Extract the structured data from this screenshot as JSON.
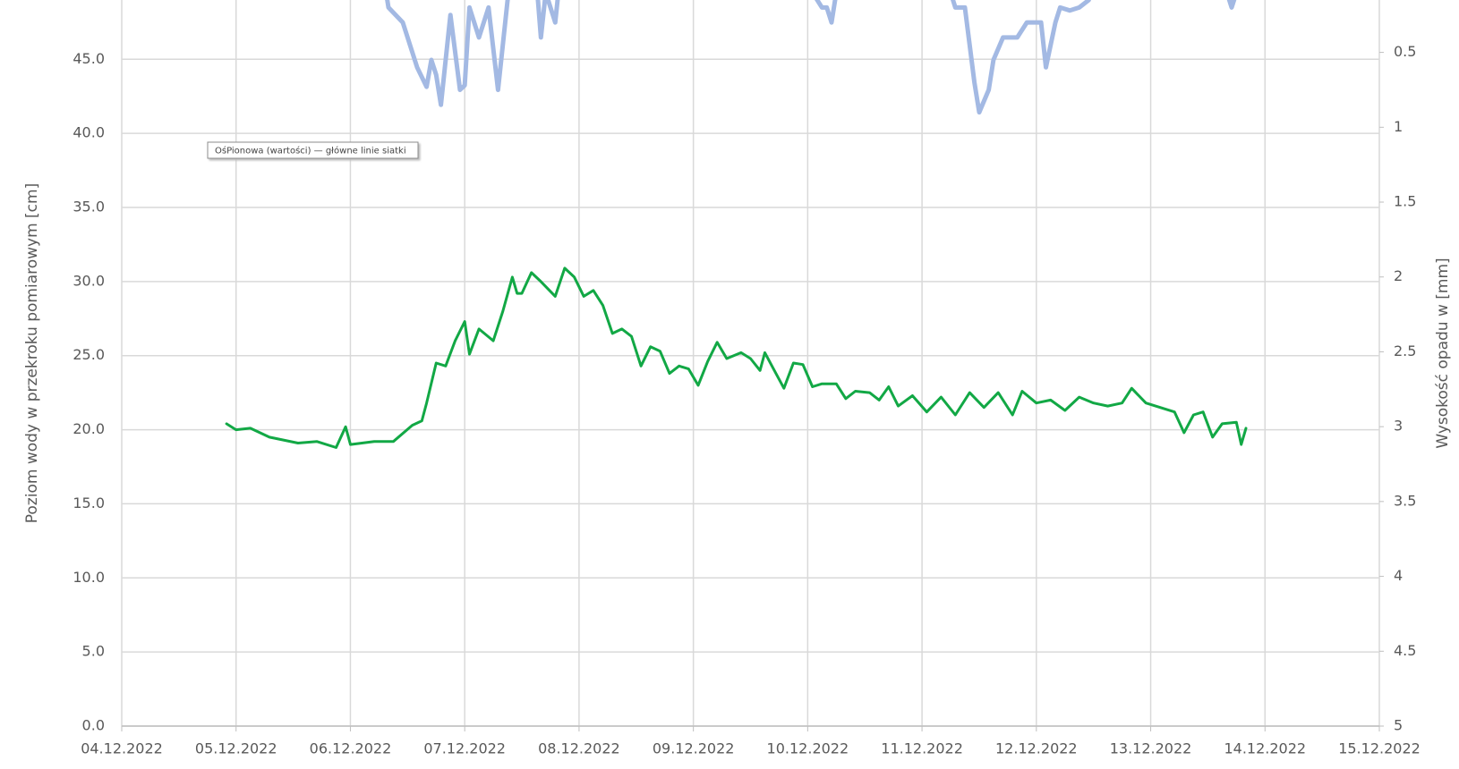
{
  "chart_data": {
    "type": "line",
    "y_label": "Poziom wody w przekroku pomiarowym [cm]",
    "y2_label": "Wysokość opadu w [mm]",
    "tooltip": "OśPionowa (wartości)  — główne linie siatki",
    "grid": true,
    "xlim": [
      "2022-12-04T00:00",
      "2022-12-15T00:00"
    ],
    "xticks": [
      {
        "value": "2022-12-04T00:00",
        "label": "04.12.2022"
      },
      {
        "value": "2022-12-05T00:00",
        "label": "05.12.2022"
      },
      {
        "value": "2022-12-06T00:00",
        "label": "06.12.2022"
      },
      {
        "value": "2022-12-07T00:00",
        "label": "07.12.2022"
      },
      {
        "value": "2022-12-08T00:00",
        "label": "08.12.2022"
      },
      {
        "value": "2022-12-09T00:00",
        "label": "09.12.2022"
      },
      {
        "value": "2022-12-10T00:00",
        "label": "10.12.2022"
      },
      {
        "value": "2022-12-11T00:00",
        "label": "11.12.2022"
      },
      {
        "value": "2022-12-12T00:00",
        "label": "12.12.2022"
      },
      {
        "value": "2022-12-13T00:00",
        "label": "13.12.2022"
      },
      {
        "value": "2022-12-14T00:00",
        "label": "14.12.2022"
      },
      {
        "value": "2022-12-15T00:00",
        "label": "15.12.2022"
      }
    ],
    "ylim": [
      0,
      49
    ],
    "yticks": [
      {
        "value": 0,
        "label": "0.0"
      },
      {
        "value": 5,
        "label": "5.0"
      },
      {
        "value": 10,
        "label": "10.0"
      },
      {
        "value": 15,
        "label": "15.0"
      },
      {
        "value": 20,
        "label": "20.0"
      },
      {
        "value": 25,
        "label": "25.0"
      },
      {
        "value": 30,
        "label": "30.0"
      },
      {
        "value": 35,
        "label": "35.0"
      },
      {
        "value": 40,
        "label": "40.0"
      },
      {
        "value": 45,
        "label": "45.0"
      }
    ],
    "y2lim": [
      5,
      0.15
    ],
    "y2ticks": [
      0.5,
      1,
      1.5,
      2,
      2.5,
      3,
      3.5,
      4,
      4.5,
      5
    ],
    "series": [
      {
        "color": "#12a845",
        "width": 3,
        "x": [
          "2022-12-04T22:00",
          "2022-12-05T00:00",
          "2022-12-05T03:00",
          "2022-12-05T07:00",
          "2022-12-05T13:00",
          "2022-12-05T17:00",
          "2022-12-05T21:00",
          "2022-12-05T23:00",
          "2022-12-06T00:00",
          "2022-12-06T05:00",
          "2022-12-06T09:00",
          "2022-12-06T13:00",
          "2022-12-06T15:00",
          "2022-12-06T16:00",
          "2022-12-06T18:00",
          "2022-12-06T20:00",
          "2022-12-06T22:00",
          "2022-12-07T00:00",
          "2022-12-07T01:00",
          "2022-12-07T03:00",
          "2022-12-07T06:00",
          "2022-12-07T08:00",
          "2022-12-07T10:00",
          "2022-12-07T11:00",
          "2022-12-07T12:00",
          "2022-12-07T14:00",
          "2022-12-07T16:00",
          "2022-12-07T19:00",
          "2022-12-07T21:00",
          "2022-12-07T23:00",
          "2022-12-08T01:00",
          "2022-12-08T03:00",
          "2022-12-08T05:00",
          "2022-12-08T07:00",
          "2022-12-08T09:00",
          "2022-12-08T11:00",
          "2022-12-08T13:00",
          "2022-12-08T15:00",
          "2022-12-08T17:00",
          "2022-12-08T19:00",
          "2022-12-08T21:00",
          "2022-12-08T23:00",
          "2022-12-09T01:00",
          "2022-12-09T03:00",
          "2022-12-09T05:00",
          "2022-12-09T07:00",
          "2022-12-09T10:00",
          "2022-12-09T12:00",
          "2022-12-09T14:00",
          "2022-12-09T15:00",
          "2022-12-09T17:00",
          "2022-12-09T19:00",
          "2022-12-09T21:00",
          "2022-12-09T23:00",
          "2022-12-10T01:00",
          "2022-12-10T03:00",
          "2022-12-10T06:00",
          "2022-12-10T08:00",
          "2022-12-10T10:00",
          "2022-12-10T13:00",
          "2022-12-10T15:00",
          "2022-12-10T17:00",
          "2022-12-10T19:00",
          "2022-12-10T22:00",
          "2022-12-11T01:00",
          "2022-12-11T04:00",
          "2022-12-11T07:00",
          "2022-12-11T10:00",
          "2022-12-11T13:00",
          "2022-12-11T16:00",
          "2022-12-11T19:00",
          "2022-12-11T21:00",
          "2022-12-12T00:00",
          "2022-12-12T03:00",
          "2022-12-12T06:00",
          "2022-12-12T09:00",
          "2022-12-12T12:00",
          "2022-12-12T15:00",
          "2022-12-12T18:00",
          "2022-12-12T20:00",
          "2022-12-12T23:00",
          "2022-12-13T02:00",
          "2022-12-13T05:00",
          "2022-12-13T07:00",
          "2022-12-13T09:00",
          "2022-12-13T11:00",
          "2022-12-13T13:00",
          "2022-12-13T15:00",
          "2022-12-13T18:00",
          "2022-12-13T19:00",
          "2022-12-13T20:00"
        ],
        "values": [
          20.4,
          20.0,
          20.1,
          19.5,
          19.1,
          19.2,
          18.8,
          20.2,
          19.0,
          19.2,
          19.2,
          20.3,
          20.6,
          21.8,
          24.5,
          24.3,
          26.0,
          27.3,
          25.1,
          26.8,
          26.0,
          28.0,
          30.3,
          29.2,
          29.2,
          30.6,
          30.0,
          29.0,
          30.9,
          30.3,
          29.0,
          29.4,
          28.4,
          26.5,
          26.8,
          26.3,
          24.3,
          25.6,
          25.3,
          23.8,
          24.3,
          24.1,
          23.0,
          24.6,
          25.9,
          24.8,
          25.2,
          24.8,
          24.0,
          25.2,
          24.0,
          22.8,
          24.5,
          24.4,
          22.9,
          23.1,
          23.1,
          22.1,
          22.6,
          22.5,
          22.0,
          22.9,
          21.6,
          22.3,
          21.2,
          22.2,
          21.0,
          22.5,
          21.5,
          22.5,
          21.0,
          22.6,
          21.8,
          22.0,
          21.3,
          22.2,
          21.8,
          21.6,
          21.8,
          22.8,
          21.8,
          21.5,
          21.2,
          19.8,
          21.0,
          21.2,
          19.5,
          20.4,
          20.5,
          19.0,
          20.1
        ]
      },
      {
        "color": "#a3b9e3",
        "width": 5,
        "axis": "y2",
        "x": [
          "2022-12-06T07:00",
          "2022-12-06T08:00",
          "2022-12-06T11:00",
          "2022-12-06T14:00",
          "2022-12-06T16:00",
          "2022-12-06T17:00",
          "2022-12-06T18:00",
          "2022-12-06T19:00",
          "2022-12-06T21:00",
          "2022-12-06T23:00",
          "2022-12-07T00:00",
          "2022-12-07T01:00",
          "2022-12-07T03:00",
          "2022-12-07T05:00",
          "2022-12-07T07:00",
          "2022-12-07T09:00",
          "2022-12-07T10:00",
          "2022-12-07T15:00",
          "2022-12-07T16:00",
          "2022-12-07T17:00",
          "2022-12-07T19:00",
          "2022-12-07T20:00",
          "2022-12-10T00:00",
          "2022-12-10T01:00",
          "2022-12-10T03:00",
          "2022-12-10T04:00",
          "2022-12-10T05:00",
          "2022-12-10T06:00",
          "2022-12-10T07:00",
          "2022-12-11T05:00",
          "2022-12-11T06:00",
          "2022-12-11T07:00",
          "2022-12-11T09:00",
          "2022-12-11T11:00",
          "2022-12-11T12:00",
          "2022-12-11T14:00",
          "2022-12-11T15:00",
          "2022-12-11T17:00",
          "2022-12-11T20:00",
          "2022-12-11T22:00",
          "2022-12-12T01:00",
          "2022-12-12T02:00",
          "2022-12-12T04:00",
          "2022-12-12T05:00",
          "2022-12-12T07:00",
          "2022-12-12T09:00",
          "2022-12-12T11:00",
          "2022-12-12T12:00",
          "2022-12-13T15:00",
          "2022-12-13T17:00",
          "2022-12-13T19:00"
        ],
        "values": [
          0,
          0.2,
          0.3,
          0.6,
          0.73,
          0.55,
          0.65,
          0.85,
          0.25,
          0.75,
          0.72,
          0.2,
          0.4,
          0.2,
          0.75,
          0.15,
          0,
          0,
          0.4,
          0.1,
          0.3,
          0,
          0,
          0.1,
          0.2,
          0.2,
          0.3,
          0.1,
          0,
          0,
          0.1,
          0.2,
          0.2,
          0.7,
          0.9,
          0.75,
          0.55,
          0.4,
          0.4,
          0.3,
          0.3,
          0.6,
          0.3,
          0.2,
          0.22,
          0.2,
          0.15,
          0,
          0,
          0.2,
          0
        ]
      }
    ]
  }
}
